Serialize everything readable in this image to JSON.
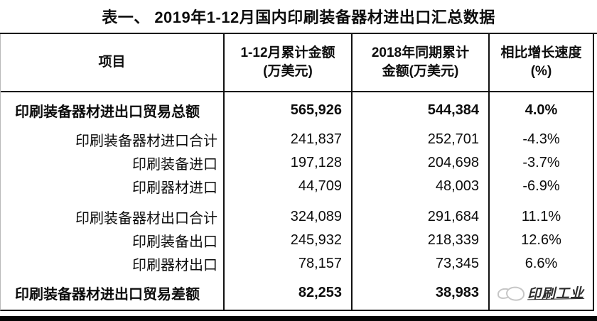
{
  "page": {
    "title": "表一、 2019年1-12月国内印刷装备器材进出口汇总数据"
  },
  "table": {
    "columns": [
      {
        "line1": "项目",
        "line2": ""
      },
      {
        "line1": "1-12月累计金额",
        "line2": "(万美元)"
      },
      {
        "line1": "2018年同期累计",
        "line2": "金额(万美元)"
      },
      {
        "line1": "相比增长速度",
        "line2": "(%)"
      }
    ],
    "rows": [
      {
        "style": "total",
        "label": "印刷装备器材进出口贸易总额",
        "amount_2019": "565,926",
        "amount_2018": "544,384",
        "growth": "4.0%"
      },
      {
        "style": "sub",
        "label": "印刷装备器材进口合计",
        "amount_2019": "241,837",
        "amount_2018": "252,701",
        "growth": "-4.3%"
      },
      {
        "style": "sub",
        "label": "印刷装备进口",
        "amount_2019": "197,128",
        "amount_2018": "204,698",
        "growth": "-3.7%"
      },
      {
        "style": "sub",
        "label": "印刷器材进口",
        "amount_2019": "44,709",
        "amount_2018": "48,003",
        "growth": "-6.9%"
      },
      {
        "style": "spacer"
      },
      {
        "style": "sub",
        "label": "印刷装备器材出口合计",
        "amount_2019": "324,089",
        "amount_2018": "291,684",
        "growth": "11.1%"
      },
      {
        "style": "sub",
        "label": "印刷装备出口",
        "amount_2019": "245,932",
        "amount_2018": "218,339",
        "growth": "12.6%"
      },
      {
        "style": "sub",
        "label": "印刷器材出口",
        "amount_2019": "78,157",
        "amount_2018": "73,345",
        "growth": "6.6%"
      },
      {
        "style": "last",
        "label": "印刷装备器材进出口贸易差额",
        "amount_2019": "82,253",
        "amount_2018": "38,983",
        "growth": "",
        "watermark": true
      }
    ]
  },
  "watermark": {
    "text": "印刷工业"
  }
}
